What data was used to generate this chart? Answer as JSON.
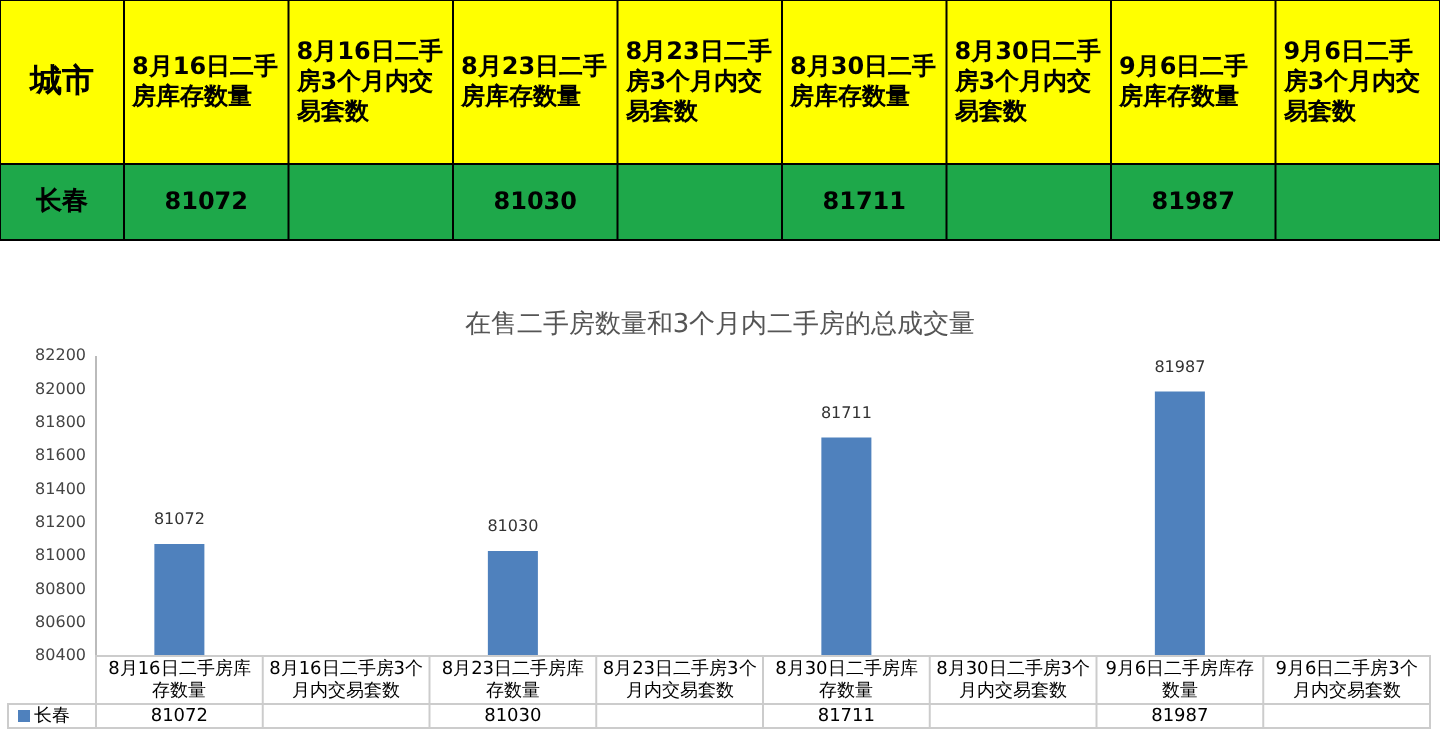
{
  "chart_data": {
    "type": "bar",
    "title": "在售二手房数量和3个月内二手房的总成交量",
    "annotations": [
      "城市"
    ],
    "categories": [
      "8月16日二手房库存数量",
      "8月16日二手房3个月内交易套数",
      "8月23日二手房库存数量",
      "8月23日二手房3个月内交易套数",
      "8月30日二手房库存数量",
      "8月30日二手房3个月内交易套数",
      "9月6日二手房库存数量",
      "9月6日二手房3个月内交易套数"
    ],
    "series": [
      {
        "name": "长春",
        "color": "#4f81bd",
        "values": [
          81072,
          null,
          81030,
          null,
          81711,
          null,
          81987,
          null
        ],
        "value_labels": [
          "81072",
          null,
          "81030",
          null,
          "81711",
          null,
          "81987",
          null
        ]
      }
    ],
    "ylim": [
      80400,
      82200
    ],
    "yticks": [
      80400,
      80600,
      80800,
      81000,
      81200,
      81400,
      81600,
      81800,
      82000,
      82200
    ],
    "legend": "bottom",
    "grid": false
  }
}
